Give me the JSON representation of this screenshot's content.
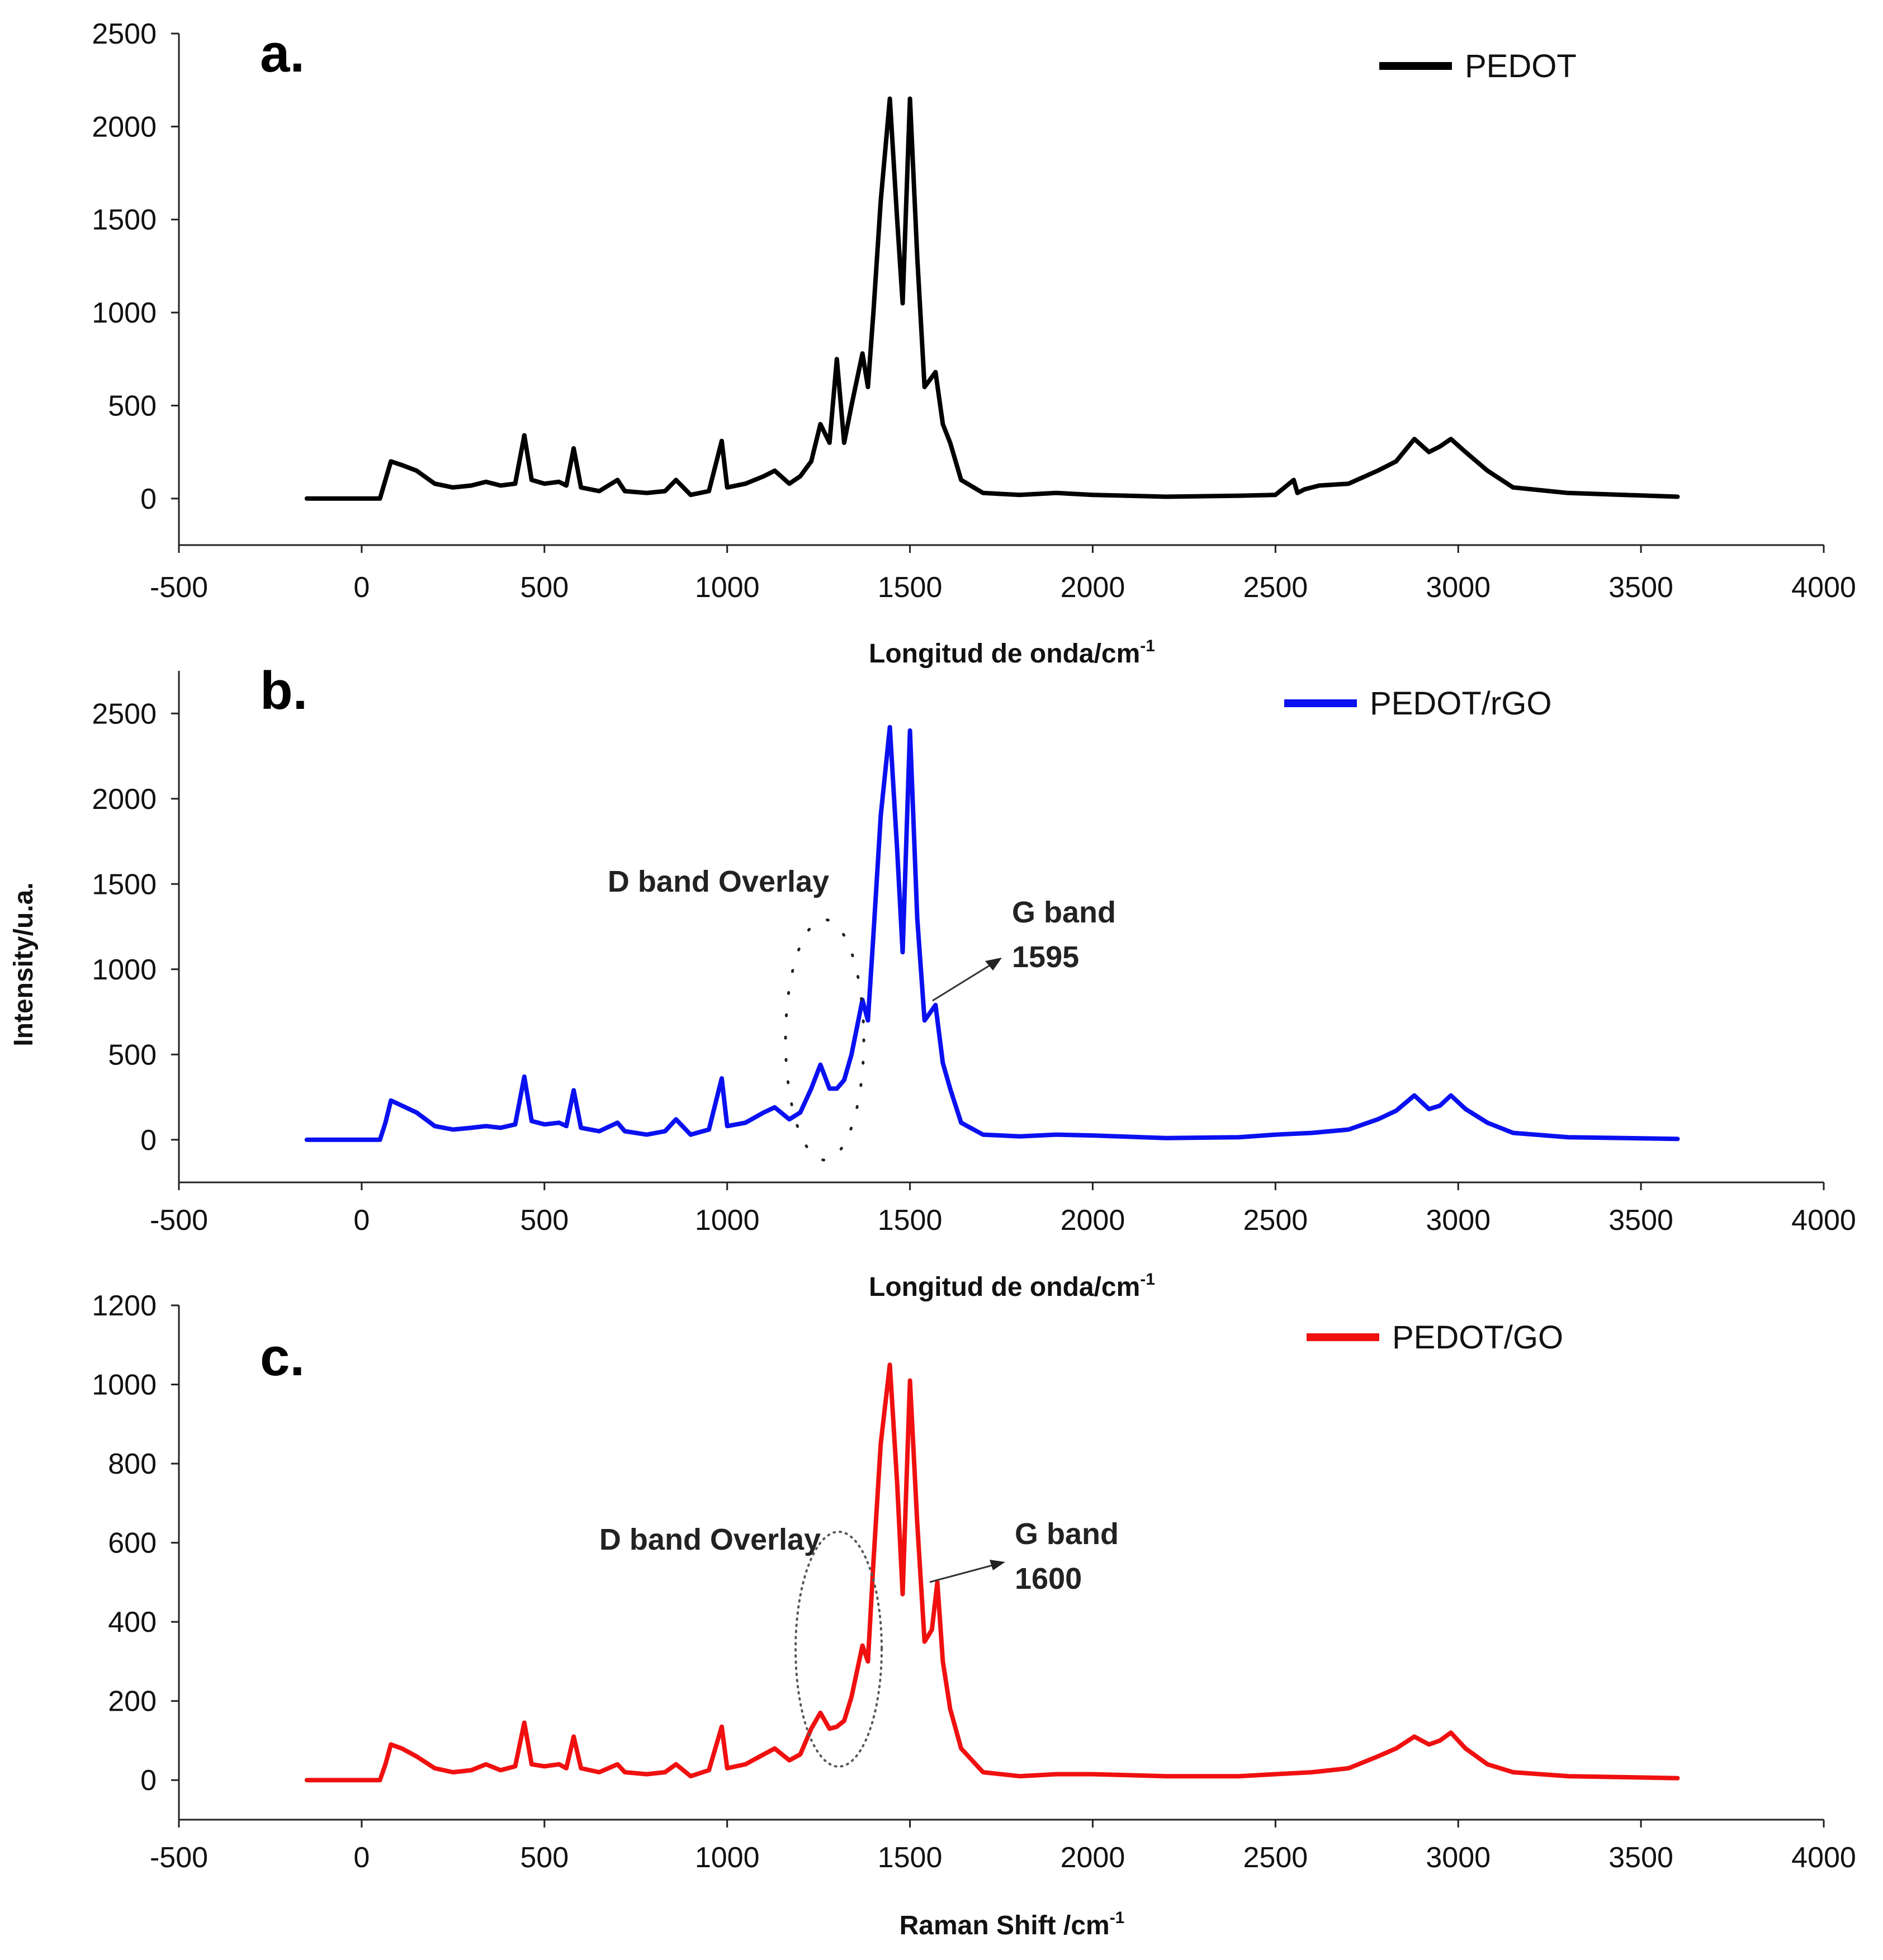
{
  "chart_data": [
    {
      "type": "line",
      "panel_label": "a.",
      "legend": "PEDOT",
      "color": "#000000",
      "xlabel": "Longitud de onda/cm",
      "xlabel_sup": "-1",
      "ylabel": "",
      "xlim": [
        -500,
        4000
      ],
      "ylim": [
        -250,
        2500
      ],
      "xticks": [
        "-500",
        "0",
        "500",
        "1000",
        "1500",
        "2000",
        "2500",
        "3000",
        "3500",
        "4000"
      ],
      "yticks": [
        "0",
        "500",
        "1000",
        "1500",
        "2000",
        "2500"
      ],
      "x": [
        -150,
        50,
        65,
        80,
        110,
        150,
        200,
        250,
        300,
        340,
        380,
        420,
        445,
        465,
        500,
        540,
        560,
        580,
        600,
        650,
        700,
        720,
        780,
        830,
        860,
        900,
        950,
        985,
        1000,
        1050,
        1100,
        1130,
        1170,
        1200,
        1230,
        1255,
        1280,
        1300,
        1320,
        1340,
        1370,
        1385,
        1400,
        1420,
        1445,
        1465,
        1480,
        1500,
        1520,
        1540,
        1570,
        1590,
        1610,
        1640,
        1700,
        1800,
        1900,
        2000,
        2200,
        2400,
        2500,
        2550,
        2560,
        2580,
        2620,
        2700,
        2780,
        2830,
        2880,
        2920,
        2950,
        2980,
        3020,
        3080,
        3150,
        3300,
        3600
      ],
      "y": [
        0,
        0,
        100,
        200,
        180,
        150,
        80,
        60,
        70,
        90,
        70,
        80,
        340,
        100,
        80,
        90,
        70,
        270,
        60,
        40,
        100,
        40,
        30,
        40,
        100,
        20,
        40,
        310,
        60,
        80,
        120,
        150,
        80,
        120,
        200,
        400,
        300,
        750,
        300,
        500,
        780,
        600,
        1000,
        1600,
        2150,
        1500,
        1050,
        2150,
        1300,
        600,
        680,
        400,
        300,
        100,
        30,
        20,
        30,
        20,
        10,
        15,
        20,
        100,
        30,
        50,
        70,
        80,
        150,
        200,
        320,
        250,
        280,
        320,
        250,
        150,
        60,
        30,
        10
      ],
      "annotations": []
    },
    {
      "type": "line",
      "panel_label": "b.",
      "legend": "PEDOT/rGO",
      "color": "#0a10f0",
      "xlabel": "Longitud de onda/cm",
      "xlabel_sup": "-1",
      "ylabel": "Intensity/u.a.",
      "xlim": [
        -500,
        4000
      ],
      "ylim": [
        -250,
        2750
      ],
      "xticks": [
        "-500",
        "0",
        "500",
        "1000",
        "1500",
        "2000",
        "2500",
        "3000",
        "3500",
        "4000"
      ],
      "yticks": [
        "0",
        "500",
        "1000",
        "1500",
        "2000",
        "2500"
      ],
      "x": [
        -150,
        50,
        65,
        80,
        110,
        150,
        200,
        250,
        300,
        340,
        380,
        420,
        445,
        465,
        500,
        540,
        560,
        580,
        600,
        650,
        700,
        720,
        780,
        830,
        860,
        900,
        950,
        985,
        1000,
        1050,
        1100,
        1130,
        1170,
        1200,
        1230,
        1255,
        1280,
        1300,
        1320,
        1340,
        1370,
        1385,
        1400,
        1420,
        1445,
        1465,
        1480,
        1500,
        1520,
        1540,
        1570,
        1590,
        1610,
        1640,
        1700,
        1800,
        1900,
        2000,
        2200,
        2400,
        2500,
        2600,
        2700,
        2780,
        2830,
        2880,
        2920,
        2950,
        2980,
        3020,
        3080,
        3150,
        3300,
        3600
      ],
      "y": [
        0,
        0,
        100,
        230,
        200,
        160,
        80,
        60,
        70,
        80,
        70,
        90,
        370,
        110,
        90,
        100,
        80,
        290,
        70,
        50,
        100,
        50,
        30,
        50,
        120,
        30,
        60,
        360,
        80,
        100,
        160,
        190,
        120,
        160,
        300,
        440,
        300,
        300,
        350,
        500,
        820,
        700,
        1200,
        1900,
        2420,
        1700,
        1100,
        2400,
        1300,
        700,
        790,
        450,
        300,
        100,
        30,
        20,
        30,
        25,
        10,
        15,
        30,
        40,
        60,
        120,
        170,
        260,
        180,
        200,
        260,
        180,
        100,
        40,
        15,
        5
      ],
      "annotations": [
        {
          "text": "D band Overlay"
        },
        {
          "text": "G band"
        },
        {
          "text": "1595"
        }
      ]
    },
    {
      "type": "line",
      "panel_label": "c.",
      "legend": "PEDOT/GO",
      "color": "#f01010",
      "xlabel": "Raman Shift /cm",
      "xlabel_sup": "-1",
      "ylabel": "",
      "xlim": [
        -500,
        4000
      ],
      "ylim": [
        -100,
        1200
      ],
      "xticks": [
        "-500",
        "0",
        "500",
        "1000",
        "1500",
        "2000",
        "2500",
        "3000",
        "3500",
        "4000"
      ],
      "yticks": [
        "0",
        "200",
        "400",
        "600",
        "800",
        "1000",
        "1200"
      ],
      "x": [
        -150,
        50,
        65,
        80,
        110,
        150,
        200,
        250,
        300,
        340,
        380,
        420,
        445,
        465,
        500,
        540,
        560,
        580,
        600,
        650,
        700,
        720,
        780,
        830,
        860,
        900,
        950,
        985,
        1000,
        1050,
        1100,
        1130,
        1170,
        1200,
        1230,
        1255,
        1280,
        1300,
        1320,
        1340,
        1370,
        1385,
        1400,
        1420,
        1445,
        1465,
        1480,
        1500,
        1520,
        1540,
        1560,
        1575,
        1590,
        1610,
        1640,
        1700,
        1800,
        1900,
        2000,
        2200,
        2400,
        2500,
        2600,
        2700,
        2780,
        2830,
        2880,
        2920,
        2950,
        2980,
        3020,
        3080,
        3150,
        3300,
        3600
      ],
      "y": [
        0,
        0,
        40,
        90,
        80,
        60,
        30,
        20,
        25,
        40,
        25,
        35,
        145,
        40,
        35,
        40,
        30,
        110,
        30,
        20,
        40,
        20,
        15,
        20,
        40,
        10,
        25,
        135,
        30,
        40,
        65,
        80,
        50,
        65,
        130,
        170,
        130,
        135,
        150,
        210,
        340,
        300,
        550,
        850,
        1050,
        750,
        470,
        1010,
        650,
        350,
        380,
        500,
        300,
        180,
        80,
        20,
        10,
        15,
        15,
        10,
        10,
        15,
        20,
        30,
        60,
        80,
        110,
        90,
        100,
        120,
        80,
        40,
        20,
        10,
        5
      ],
      "annotations": [
        {
          "text": "D band Overlay"
        },
        {
          "text": "G band"
        },
        {
          "text": "1600"
        }
      ]
    }
  ]
}
